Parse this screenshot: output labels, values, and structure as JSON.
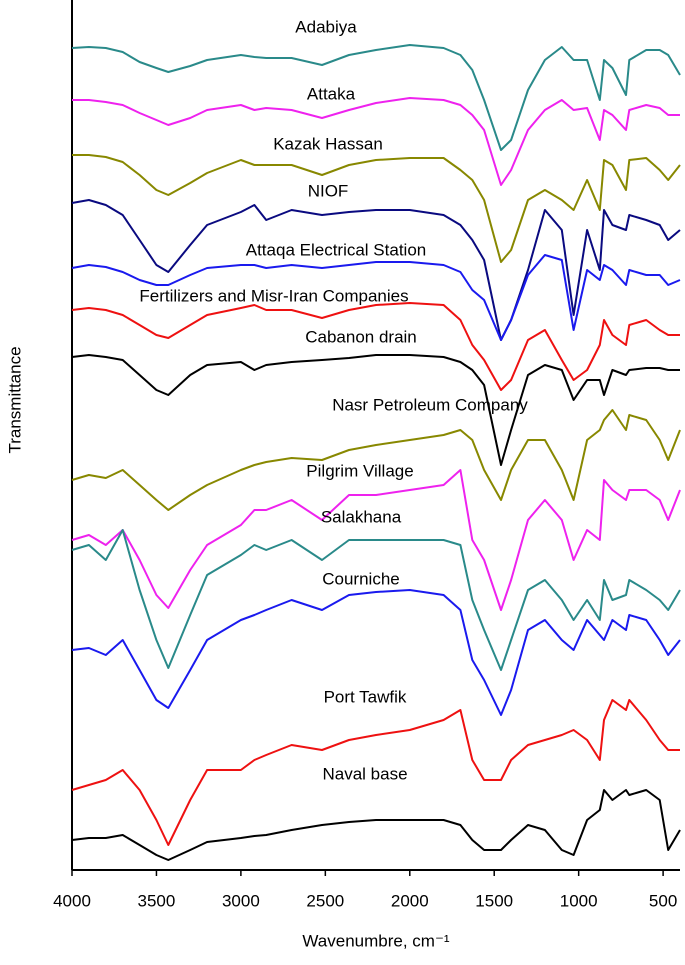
{
  "chart_data": {
    "type": "line",
    "xlabel": "Wavenumbre, cm⁻¹",
    "ylabel": "Transmittance",
    "xlim": [
      4000,
      400
    ],
    "ylim": [
      0,
      87
    ],
    "xticks": [
      4000,
      3500,
      3000,
      2500,
      2000,
      1500,
      1000,
      500
    ],
    "x": [
      4000,
      3900,
      3800,
      3700,
      3600,
      3500,
      3430,
      3300,
      3200,
      3000,
      2920,
      2850,
      2700,
      2520,
      2360,
      2200,
      2000,
      1800,
      1700,
      1630,
      1560,
      1460,
      1400,
      1300,
      1200,
      1100,
      1030,
      950,
      875,
      850,
      800,
      720,
      700,
      600,
      520,
      470,
      400
    ],
    "series": [
      {
        "name": "Adabiya",
        "color": "#2a8a8a",
        "values": [
          82.2,
          82.3,
          82.2,
          81.8,
          80.8,
          80.2,
          79.8,
          80.4,
          81,
          81.5,
          81.3,
          81.2,
          81.2,
          80.5,
          81.5,
          82,
          82.5,
          82.2,
          81.5,
          80,
          77,
          72,
          73,
          78,
          81,
          82.3,
          81,
          81,
          77,
          81,
          80.2,
          77.5,
          81,
          82,
          82,
          81.5,
          79.5
        ]
      },
      {
        "name": "Attaka",
        "color": "#ee22ee",
        "values": [
          77,
          77,
          76.8,
          76.5,
          75.7,
          75,
          74.5,
          75.2,
          76,
          76.5,
          76,
          76.2,
          76,
          75.2,
          76,
          76.7,
          77.2,
          77,
          76.5,
          75.5,
          74,
          68.5,
          70,
          74,
          76,
          77,
          76,
          76.2,
          73,
          76,
          75.5,
          74,
          76,
          76.5,
          76.2,
          75.5,
          75.5
        ]
      },
      {
        "name": "Kazak Hassan",
        "color": "#888800",
        "values": [
          71.5,
          71.5,
          71.3,
          70.8,
          69.5,
          68,
          67.5,
          68.7,
          69.7,
          71,
          70.5,
          70.5,
          70.5,
          69.5,
          70.5,
          71,
          71.2,
          71.2,
          70,
          69,
          67,
          60.8,
          62,
          67,
          68,
          67,
          66,
          69,
          66,
          71,
          70.5,
          68,
          71,
          71.2,
          70,
          69,
          70.5
        ]
      },
      {
        "name": "NIOF",
        "color": "#0a0a80",
        "values": [
          66.7,
          67,
          66.5,
          65.5,
          63,
          60.5,
          59.8,
          62.5,
          64.5,
          65.8,
          66.5,
          65,
          66,
          65.5,
          65.8,
          66,
          66,
          65.5,
          64.5,
          63,
          61,
          53,
          55,
          60,
          66,
          64,
          55.5,
          64,
          60,
          66,
          64.5,
          64,
          65.5,
          65,
          64.5,
          63,
          64
        ]
      },
      {
        "name": "Attaqa Electrical Station",
        "color": "#1a1aee",
        "values": [
          60.2,
          60.5,
          60.3,
          59.8,
          59,
          58.5,
          58.5,
          59.5,
          60.2,
          60.5,
          60.5,
          60.2,
          60.5,
          60.2,
          60.5,
          60.8,
          60.8,
          60.5,
          59.8,
          58,
          57,
          53,
          55,
          59.5,
          61.5,
          61,
          54,
          60,
          59,
          60.5,
          60,
          58.5,
          60,
          59.5,
          59.5,
          58.5,
          59
        ]
      },
      {
        "name": "Fertilizers and Misr-Iran Companies",
        "color": "#ee1111",
        "values": [
          56,
          56.2,
          56,
          55.5,
          54.5,
          53.5,
          53.2,
          54.5,
          55.5,
          56.2,
          56.5,
          56,
          56,
          55.2,
          56,
          56.5,
          56.7,
          56.5,
          55,
          52.5,
          51,
          48,
          49,
          53,
          54,
          51,
          49,
          50,
          52.5,
          55,
          53.5,
          52.5,
          54.5,
          55,
          54,
          53.5,
          53.5
        ]
      },
      {
        "name": "Cabanon drain",
        "color": "#000000",
        "values": [
          51.3,
          51.5,
          51.3,
          51,
          49.5,
          48,
          47.5,
          49.5,
          50.5,
          50.8,
          50,
          50.5,
          50.8,
          51,
          51.2,
          51.5,
          51.5,
          51.3,
          50.8,
          50,
          48.5,
          40.5,
          44,
          49.5,
          50.5,
          50,
          47,
          49,
          49,
          47.5,
          50,
          49.5,
          50,
          50.2,
          50.2,
          50,
          50
        ]
      },
      {
        "name": "Nasr Petroleum Company",
        "color": "#888800",
        "values": [
          39,
          39.5,
          39.2,
          40,
          38.5,
          37,
          36,
          37.5,
          38.5,
          40,
          40.5,
          40.8,
          41.2,
          41,
          42,
          42.5,
          43,
          43.5,
          44,
          43,
          40,
          37,
          40,
          43,
          43,
          40,
          37,
          43,
          44,
          45,
          46,
          44,
          45.5,
          45,
          43,
          41,
          44
        ]
      },
      {
        "name": "Pilgrim Village",
        "color": "#ee22ee",
        "values": [
          33,
          33.5,
          32.5,
          34,
          31,
          27.5,
          26.2,
          30,
          32.5,
          34.5,
          36,
          36,
          37,
          35,
          37.5,
          37.5,
          38,
          38.5,
          40,
          33,
          31,
          26,
          29,
          35,
          37,
          35,
          31,
          34,
          33,
          39,
          38,
          37,
          38,
          38,
          37,
          35,
          38
        ]
      },
      {
        "name": "Salakhana",
        "color": "#2a8a8a",
        "values": [
          32,
          32.5,
          31,
          34,
          28,
          23,
          20.2,
          25.5,
          29.5,
          31.5,
          32.5,
          32,
          33,
          31,
          33,
          33,
          33,
          33,
          32.5,
          27,
          24,
          20,
          23,
          28,
          29,
          27,
          25,
          27,
          25,
          29,
          27,
          27.5,
          29,
          28,
          27,
          26,
          28
        ]
      },
      {
        "name": "Courniche",
        "color": "#1a1aee",
        "values": [
          22,
          22.2,
          21.5,
          23,
          20,
          17,
          16.2,
          20,
          23,
          25,
          25.5,
          26,
          27,
          26,
          27.5,
          27.8,
          28,
          27.5,
          26,
          21,
          19,
          15.5,
          18,
          24,
          25,
          23,
          22,
          25,
          23.5,
          23,
          25,
          24,
          25.5,
          25,
          23,
          21.5,
          23
        ]
      },
      {
        "name": "Port Tawfik",
        "color": "#ee1111",
        "values": [
          8,
          8.5,
          9,
          10,
          8,
          5,
          2.5,
          7,
          10,
          10,
          11,
          11.5,
          12.5,
          12,
          13,
          13.5,
          14,
          15,
          16,
          11,
          9,
          9,
          11,
          12.5,
          13,
          13.5,
          14,
          13,
          11,
          15,
          17,
          16,
          17,
          15,
          13,
          12,
          12
        ]
      },
      {
        "name": "Naval base",
        "color": "#000000",
        "values": [
          3,
          3.2,
          3.2,
          3.5,
          2.5,
          1.5,
          1,
          2,
          2.8,
          3.2,
          3.4,
          3.5,
          4,
          4.5,
          4.8,
          5,
          5,
          5,
          4.5,
          3,
          2,
          2,
          3,
          4.5,
          4,
          2,
          1.5,
          5,
          6,
          8,
          7,
          8,
          7.5,
          8,
          7,
          2,
          4
        ]
      }
    ]
  }
}
